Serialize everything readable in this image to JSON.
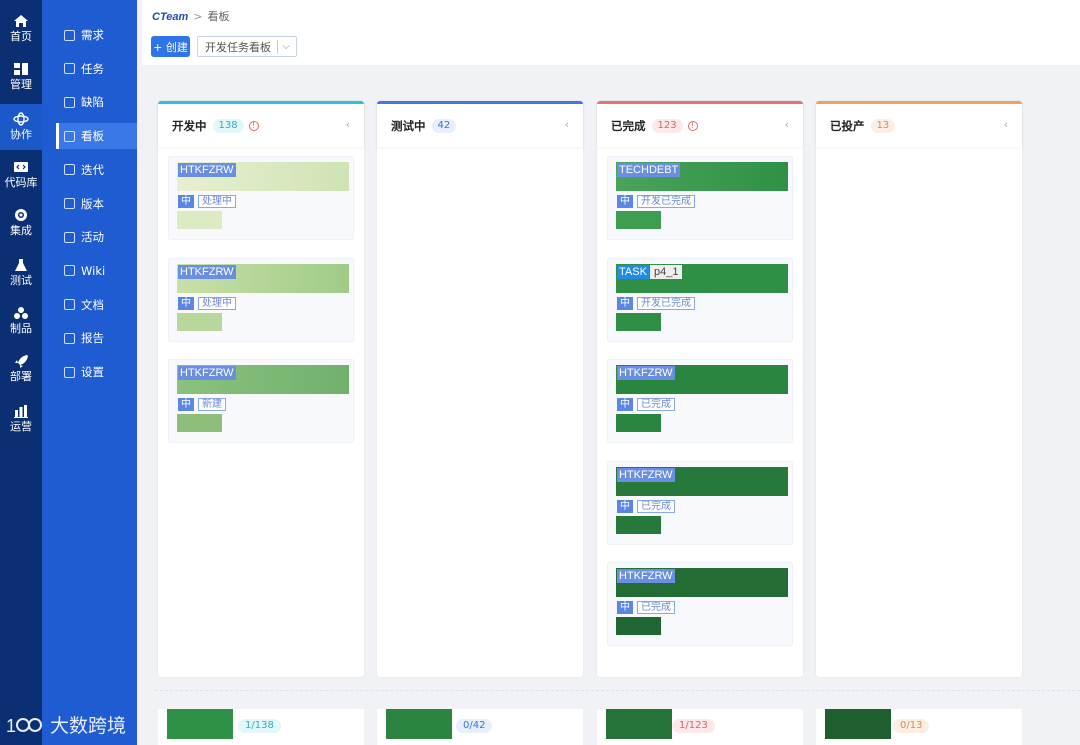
{
  "rail": [
    {
      "label": "首页",
      "icon": "home-icon"
    },
    {
      "label": "管理",
      "icon": "grid-icon"
    },
    {
      "label": "协作",
      "icon": "collab-icon",
      "active": true
    },
    {
      "label": "代码库",
      "icon": "code-icon"
    },
    {
      "label": "集成",
      "icon": "integration-icon"
    },
    {
      "label": "测试",
      "icon": "flask-icon"
    },
    {
      "label": "制品",
      "icon": "artifact-icon"
    },
    {
      "label": "部署",
      "icon": "rocket-icon"
    },
    {
      "label": "运营",
      "icon": "bar-chart-icon"
    }
  ],
  "subnav": [
    {
      "label": "需求"
    },
    {
      "label": "任务"
    },
    {
      "label": "缺陷"
    },
    {
      "label": "看板",
      "active": true
    },
    {
      "label": "迭代"
    },
    {
      "label": "版本"
    },
    {
      "label": "活动"
    },
    {
      "label": "Wiki"
    },
    {
      "label": "文档"
    },
    {
      "label": "报告"
    },
    {
      "label": "设置"
    }
  ],
  "breadcrumb": {
    "logo": "CTeam",
    "sep": ">",
    "page": "看板"
  },
  "toolbar": {
    "create_label": "+ 创建",
    "board_select": "开发任务看板"
  },
  "columns": [
    {
      "title": "开发中",
      "count": "138",
      "warn": true,
      "accent": "#2bc3d8",
      "badge_bg": "#e2f7fa",
      "badge_fg": "#2bb0c4",
      "cards": [
        {
          "key": "HTKFZRW",
          "priority": "中",
          "status": "处理中"
        },
        {
          "key": "HTKFZRW",
          "priority": "中",
          "status": "处理中"
        },
        {
          "key": "HTKFZRW",
          "priority": "中",
          "status": "新建"
        }
      ]
    },
    {
      "title": "测试中",
      "count": "42",
      "warn": false,
      "accent": "#3b7be6",
      "badge_bg": "#e7effd",
      "badge_fg": "#3b6fd6",
      "cards": []
    },
    {
      "title": "已完成",
      "count": "123",
      "warn": true,
      "accent": "#ee6e77",
      "badge_bg": "#fde9ea",
      "badge_fg": "#e0606a",
      "cards": [
        {
          "key": "TECHDEBT",
          "priority": "中",
          "status": "开发已完成"
        },
        {
          "key": "TASK",
          "sub_key": "p4_1",
          "priority": "中",
          "status": "开发已完成"
        },
        {
          "key": "HTKFZRW",
          "priority": "中",
          "status": "已完成"
        },
        {
          "key": "HTKFZRW",
          "priority": "中",
          "status": "已完成"
        },
        {
          "key": "HTKFZRW",
          "priority": "中",
          "status": "已完成"
        }
      ]
    },
    {
      "title": "已投产",
      "count": "13",
      "warn": false,
      "accent": "#f5a05a",
      "badge_bg": "#fdeee3",
      "badge_fg": "#e08a48",
      "cards": []
    }
  ],
  "summary": [
    {
      "count": "1/138",
      "color": "#2bb0c4",
      "bg": "#e2f7fa"
    },
    {
      "count": "0/42",
      "color": "#3b6fd6",
      "bg": "#e7effd"
    },
    {
      "count": "1/123",
      "color": "#e0606a",
      "bg": "#fde9ea"
    },
    {
      "count": "0/13",
      "color": "#e08a48",
      "bg": "#fdeee3"
    }
  ],
  "watermark": "大数跨境"
}
